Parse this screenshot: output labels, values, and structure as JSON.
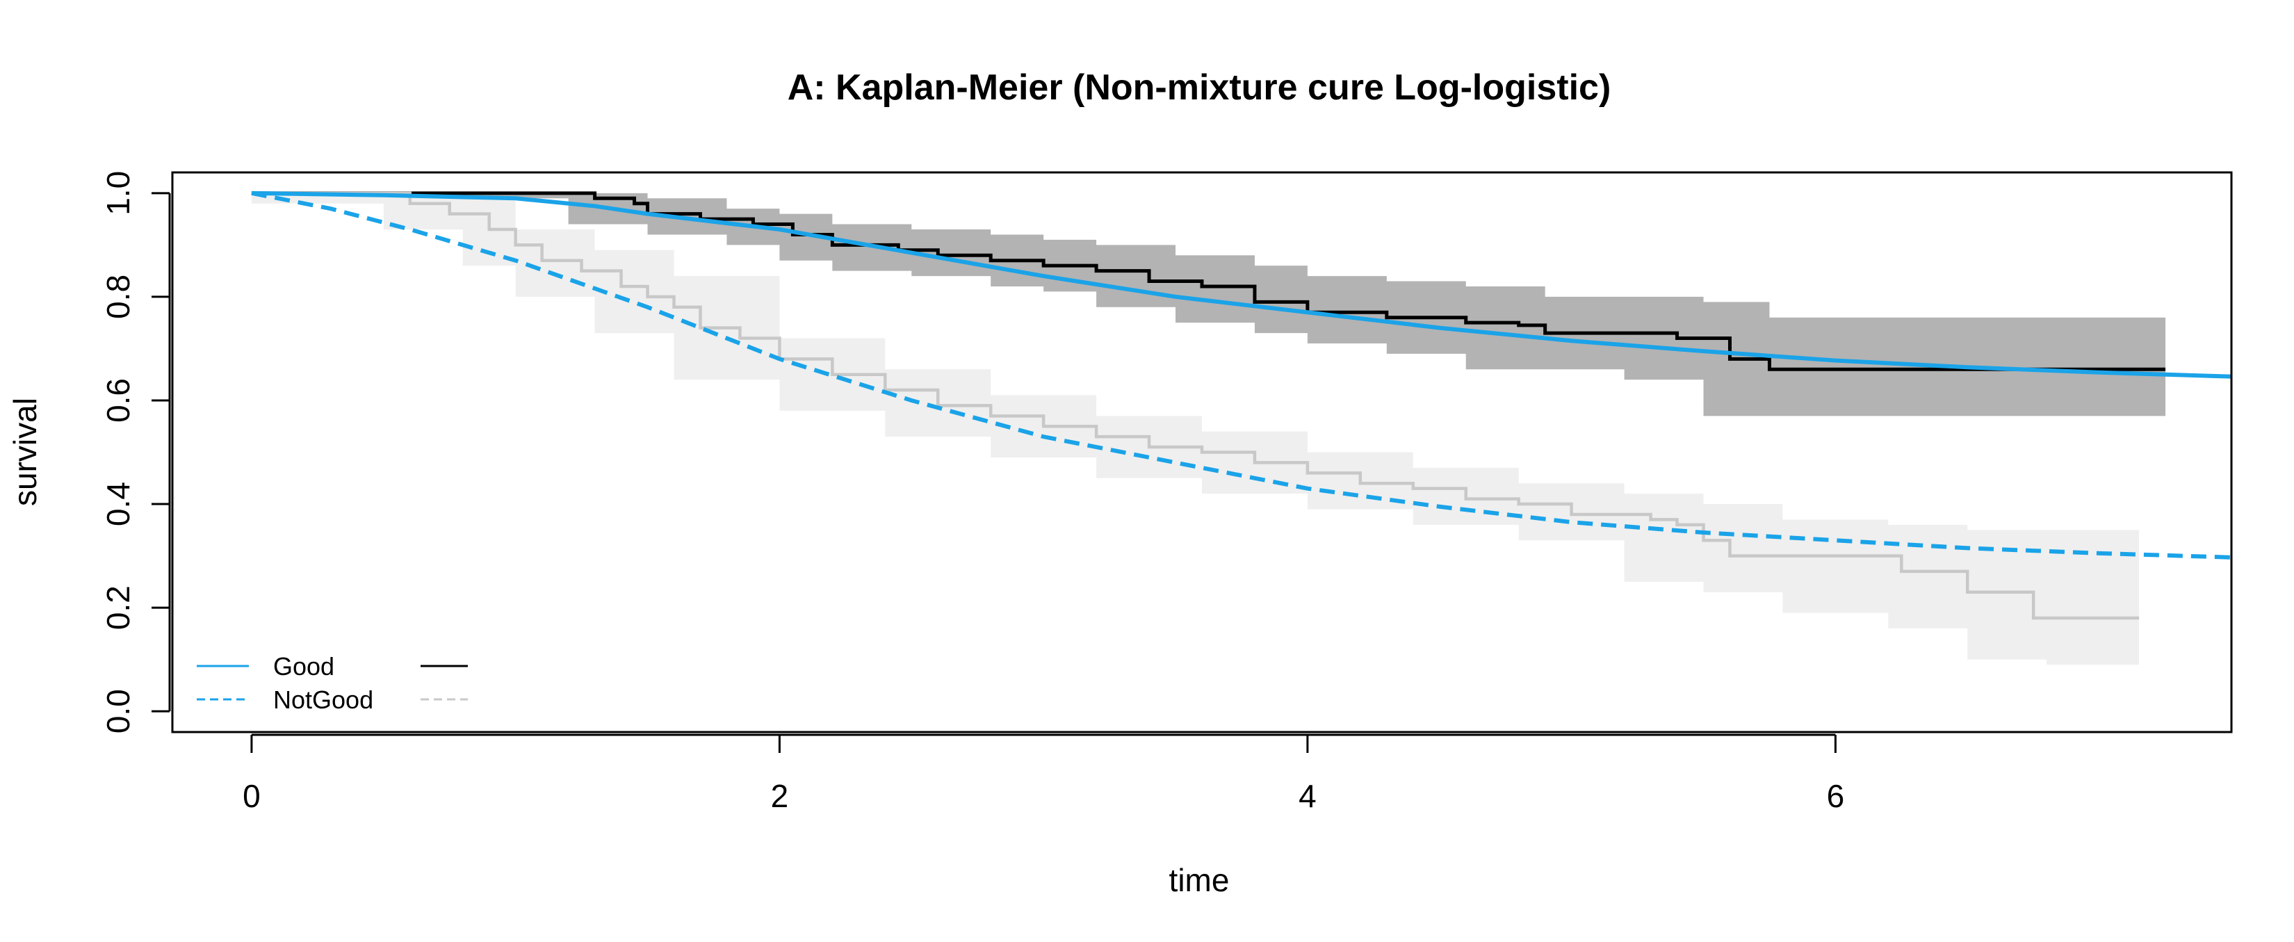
{
  "chart_data": {
    "type": "line",
    "title": "A: Kaplan-Meier (Non-mixture cure Log-logistic)",
    "xlabel": "time",
    "ylabel": "survival",
    "xlim": [
      -0.3,
      7.5
    ],
    "ylim": [
      -0.04,
      1.04
    ],
    "x_ticks": [
      0,
      2,
      4,
      6
    ],
    "y_ticks": [
      0.0,
      0.2,
      0.4,
      0.6,
      0.8,
      1.0
    ],
    "x_tick_labels": [
      "0",
      "2",
      "4",
      "6"
    ],
    "y_tick_labels": [
      "0.0",
      "0.2",
      "0.4",
      "0.6",
      "0.8",
      "1.0"
    ],
    "grid": false,
    "legend_position": "bottom-left",
    "colors": {
      "fitted": "#1AA3E8",
      "km_good": "#000000",
      "km_notgood": "#C8C8C8",
      "ci_good": "#B3B3B3",
      "ci_notgood": "#EFEFEF"
    },
    "legend": [
      {
        "label": "Good",
        "fitted_style": "solid",
        "km_style": "solid",
        "km_color": "#000000"
      },
      {
        "label": "NotGood",
        "fitted_style": "dashed",
        "km_style": "dashed",
        "km_color": "#C8C8C8"
      }
    ],
    "series": [
      {
        "name": "Good",
        "kind": "fitted",
        "style": "solid",
        "points": [
          [
            0,
            1.0
          ],
          [
            0.5,
            0.996
          ],
          [
            1.0,
            0.99
          ],
          [
            1.3,
            0.975
          ],
          [
            1.5,
            0.96
          ],
          [
            2.0,
            0.93
          ],
          [
            2.5,
            0.885
          ],
          [
            3.0,
            0.84
          ],
          [
            3.5,
            0.8
          ],
          [
            4.0,
            0.77
          ],
          [
            4.5,
            0.74
          ],
          [
            5.0,
            0.715
          ],
          [
            5.5,
            0.695
          ],
          [
            6.0,
            0.677
          ],
          [
            6.5,
            0.664
          ],
          [
            7.0,
            0.654
          ],
          [
            7.5,
            0.646
          ]
        ]
      },
      {
        "name": "NotGood",
        "kind": "fitted",
        "style": "dashed",
        "points": [
          [
            0,
            1.0
          ],
          [
            0.3,
            0.97
          ],
          [
            0.6,
            0.93
          ],
          [
            1.0,
            0.87
          ],
          [
            1.5,
            0.78
          ],
          [
            2.0,
            0.68
          ],
          [
            2.5,
            0.6
          ],
          [
            3.0,
            0.53
          ],
          [
            3.5,
            0.48
          ],
          [
            4.0,
            0.43
          ],
          [
            4.5,
            0.395
          ],
          [
            5.0,
            0.365
          ],
          [
            5.5,
            0.345
          ],
          [
            6.0,
            0.33
          ],
          [
            6.5,
            0.315
          ],
          [
            7.0,
            0.305
          ],
          [
            7.5,
            0.297
          ]
        ]
      },
      {
        "name": "Good",
        "kind": "km",
        "style": "solid",
        "points": [
          [
            0,
            1.0
          ],
          [
            1.2,
            1.0
          ],
          [
            1.3,
            0.99
          ],
          [
            1.45,
            0.98
          ],
          [
            1.5,
            0.96
          ],
          [
            1.7,
            0.95
          ],
          [
            1.9,
            0.94
          ],
          [
            2.05,
            0.92
          ],
          [
            2.2,
            0.9
          ],
          [
            2.45,
            0.89
          ],
          [
            2.6,
            0.88
          ],
          [
            2.8,
            0.87
          ],
          [
            3.0,
            0.86
          ],
          [
            3.2,
            0.85
          ],
          [
            3.4,
            0.83
          ],
          [
            3.6,
            0.82
          ],
          [
            3.8,
            0.79
          ],
          [
            4.0,
            0.77
          ],
          [
            4.3,
            0.76
          ],
          [
            4.5,
            0.76
          ],
          [
            4.6,
            0.75
          ],
          [
            4.8,
            0.745
          ],
          [
            4.9,
            0.73
          ],
          [
            5.3,
            0.73
          ],
          [
            5.4,
            0.72
          ],
          [
            5.5,
            0.72
          ],
          [
            5.6,
            0.68
          ],
          [
            5.75,
            0.66
          ],
          [
            7.25,
            0.66
          ]
        ]
      },
      {
        "name": "NotGood",
        "kind": "km",
        "style": "solid",
        "points": [
          [
            0,
            1.0
          ],
          [
            0.5,
            1.0
          ],
          [
            0.6,
            0.98
          ],
          [
            0.75,
            0.96
          ],
          [
            0.9,
            0.93
          ],
          [
            1.0,
            0.9
          ],
          [
            1.1,
            0.87
          ],
          [
            1.25,
            0.85
          ],
          [
            1.4,
            0.82
          ],
          [
            1.5,
            0.8
          ],
          [
            1.6,
            0.78
          ],
          [
            1.7,
            0.74
          ],
          [
            1.85,
            0.72
          ],
          [
            2.0,
            0.68
          ],
          [
            2.2,
            0.65
          ],
          [
            2.4,
            0.62
          ],
          [
            2.6,
            0.59
          ],
          [
            2.8,
            0.57
          ],
          [
            3.0,
            0.55
          ],
          [
            3.2,
            0.53
          ],
          [
            3.4,
            0.51
          ],
          [
            3.6,
            0.5
          ],
          [
            3.8,
            0.48
          ],
          [
            4.0,
            0.46
          ],
          [
            4.2,
            0.44
          ],
          [
            4.4,
            0.43
          ],
          [
            4.6,
            0.41
          ],
          [
            4.8,
            0.4
          ],
          [
            5.0,
            0.38
          ],
          [
            5.3,
            0.37
          ],
          [
            5.4,
            0.36
          ],
          [
            5.5,
            0.33
          ],
          [
            5.6,
            0.3
          ],
          [
            6.1,
            0.3
          ],
          [
            6.25,
            0.27
          ],
          [
            6.5,
            0.23
          ],
          [
            6.75,
            0.18
          ],
          [
            7.15,
            0.18
          ]
        ]
      }
    ],
    "confidence_bands": [
      {
        "name": "Good",
        "points": [
          [
            0,
            1.0,
            1.0
          ],
          [
            1.2,
            0.99,
            1.0
          ],
          [
            1.5,
            0.94,
            0.99
          ],
          [
            1.8,
            0.92,
            0.97
          ],
          [
            2.0,
            0.9,
            0.96
          ],
          [
            2.2,
            0.87,
            0.94
          ],
          [
            2.5,
            0.85,
            0.93
          ],
          [
            2.8,
            0.84,
            0.92
          ],
          [
            3.0,
            0.82,
            0.91
          ],
          [
            3.2,
            0.81,
            0.9
          ],
          [
            3.5,
            0.78,
            0.88
          ],
          [
            3.8,
            0.75,
            0.86
          ],
          [
            4.0,
            0.73,
            0.84
          ],
          [
            4.3,
            0.71,
            0.83
          ],
          [
            4.6,
            0.69,
            0.82
          ],
          [
            4.9,
            0.66,
            0.8
          ],
          [
            5.2,
            0.66,
            0.8
          ],
          [
            5.5,
            0.64,
            0.79
          ],
          [
            5.75,
            0.57,
            0.76
          ],
          [
            7.25,
            0.57,
            0.76
          ]
        ]
      },
      {
        "name": "NotGood",
        "points": [
          [
            0,
            1.0,
            1.0
          ],
          [
            0.5,
            0.98,
            1.0
          ],
          [
            0.8,
            0.93,
            0.99
          ],
          [
            1.0,
            0.86,
            0.93
          ],
          [
            1.3,
            0.8,
            0.89
          ],
          [
            1.6,
            0.73,
            0.84
          ],
          [
            2.0,
            0.64,
            0.72
          ],
          [
            2.4,
            0.58,
            0.66
          ],
          [
            2.8,
            0.53,
            0.61
          ],
          [
            3.2,
            0.49,
            0.57
          ],
          [
            3.6,
            0.45,
            0.54
          ],
          [
            4.0,
            0.42,
            0.5
          ],
          [
            4.4,
            0.39,
            0.47
          ],
          [
            4.8,
            0.36,
            0.44
          ],
          [
            5.2,
            0.33,
            0.42
          ],
          [
            5.5,
            0.25,
            0.4
          ],
          [
            5.8,
            0.23,
            0.37
          ],
          [
            6.2,
            0.19,
            0.36
          ],
          [
            6.5,
            0.16,
            0.35
          ],
          [
            6.8,
            0.1,
            0.35
          ],
          [
            7.15,
            0.09,
            0.35
          ]
        ]
      }
    ]
  }
}
